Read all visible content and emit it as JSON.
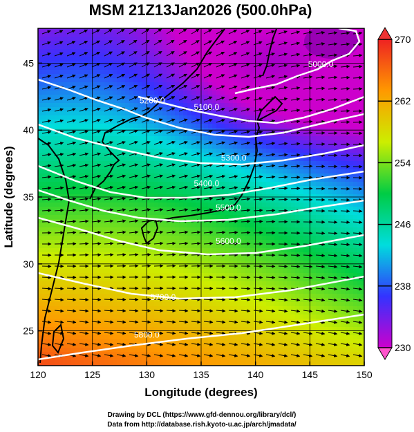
{
  "chart_data": {
    "type": "heatmap",
    "title": "MSM 21Z13Jan2026 (500.0hPa)",
    "xlabel": "Longitude (degrees)",
    "ylabel": "Latitude  (degrees)",
    "xlim": [
      120,
      150
    ],
    "ylim": [
      22.4,
      47.6
    ],
    "x_ticks": [
      "120",
      "125",
      "130",
      "135",
      "140",
      "145",
      "150"
    ],
    "y_ticks": [
      "25",
      "30",
      "35",
      "40",
      "45"
    ],
    "colorbar": {
      "range": [
        230,
        270
      ],
      "ticks": [
        "270",
        "262",
        "254",
        "246",
        "238",
        "230"
      ],
      "tick_values": [
        270,
        262,
        254,
        246,
        238,
        230
      ],
      "colors": [
        "#cc00cc",
        "#3333ff",
        "#00dddd",
        "#00cc44",
        "#ccee00",
        "#ff9900",
        "#ee2222"
      ]
    },
    "contours": [
      {
        "label": "5000.0",
        "lon": 146,
        "lat": 44.7
      },
      {
        "label": "5100.0",
        "lon": 135.5,
        "lat": 41.5
      },
      {
        "label": "5200.0",
        "lon": 130.5,
        "lat": 42.0
      },
      {
        "label": "5300.0",
        "lon": 138.0,
        "lat": 37.7
      },
      {
        "label": "5400.0",
        "lon": 135.5,
        "lat": 35.8
      },
      {
        "label": "5500.0",
        "lon": 137.5,
        "lat": 34.0
      },
      {
        "label": "5600.0",
        "lon": 137.5,
        "lat": 31.5
      },
      {
        "label": "5700.0",
        "lon": 131.5,
        "lat": 27.3
      },
      {
        "label": "5800.0",
        "lon": 130.0,
        "lat": 24.5
      }
    ],
    "grid": true
  },
  "footer": {
    "line1": "Drawing by DCL (https://www.gfd-dennou.org/library/dcl/)",
    "line2": "Data from http://database.rish.kyoto-u.ac.jp/arch/jmadata/"
  }
}
